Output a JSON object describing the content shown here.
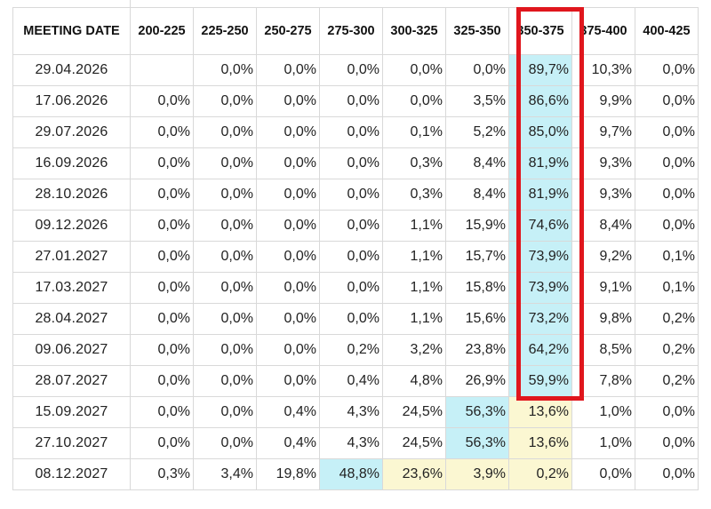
{
  "chart_data": {
    "type": "table",
    "columns": [
      "MEETING DATE",
      "200-225",
      "225-250",
      "250-275",
      "275-300",
      "300-325",
      "325-350",
      "350-375",
      "375-400",
      "400-425"
    ],
    "rows": [
      {
        "date": "29.04.2026",
        "values": [
          "",
          "0,0%",
          "0,0%",
          "0,0%",
          "0,0%",
          "0,0%",
          "89,7%",
          "10,3%",
          "0,0%"
        ]
      },
      {
        "date": "17.06.2026",
        "values": [
          "0,0%",
          "0,0%",
          "0,0%",
          "0,0%",
          "0,0%",
          "3,5%",
          "86,6%",
          "9,9%",
          "0,0%"
        ]
      },
      {
        "date": "29.07.2026",
        "values": [
          "0,0%",
          "0,0%",
          "0,0%",
          "0,0%",
          "0,1%",
          "5,2%",
          "85,0%",
          "9,7%",
          "0,0%"
        ]
      },
      {
        "date": "16.09.2026",
        "values": [
          "0,0%",
          "0,0%",
          "0,0%",
          "0,0%",
          "0,3%",
          "8,4%",
          "81,9%",
          "9,3%",
          "0,0%"
        ]
      },
      {
        "date": "28.10.2026",
        "values": [
          "0,0%",
          "0,0%",
          "0,0%",
          "0,0%",
          "0,3%",
          "8,4%",
          "81,9%",
          "9,3%",
          "0,0%"
        ]
      },
      {
        "date": "09.12.2026",
        "values": [
          "0,0%",
          "0,0%",
          "0,0%",
          "0,0%",
          "1,1%",
          "15,9%",
          "74,6%",
          "8,4%",
          "0,0%"
        ]
      },
      {
        "date": "27.01.2027",
        "values": [
          "0,0%",
          "0,0%",
          "0,0%",
          "0,0%",
          "1,1%",
          "15,7%",
          "73,9%",
          "9,2%",
          "0,1%"
        ]
      },
      {
        "date": "17.03.2027",
        "values": [
          "0,0%",
          "0,0%",
          "0,0%",
          "0,0%",
          "1,1%",
          "15,8%",
          "73,9%",
          "9,1%",
          "0,1%"
        ]
      },
      {
        "date": "28.04.2027",
        "values": [
          "0,0%",
          "0,0%",
          "0,0%",
          "0,0%",
          "1,1%",
          "15,6%",
          "73,2%",
          "9,8%",
          "0,2%"
        ]
      },
      {
        "date": "09.06.2027",
        "values": [
          "0,0%",
          "0,0%",
          "0,0%",
          "0,2%",
          "3,2%",
          "23,8%",
          "64,2%",
          "8,5%",
          "0,2%"
        ]
      },
      {
        "date": "28.07.2027",
        "values": [
          "0,0%",
          "0,0%",
          "0,0%",
          "0,4%",
          "4,8%",
          "26,9%",
          "59,9%",
          "7,8%",
          "0,2%"
        ]
      },
      {
        "date": "15.09.2027",
        "values": [
          "0,0%",
          "0,0%",
          "0,4%",
          "4,3%",
          "24,5%",
          "56,3%",
          "13,6%",
          "1,0%",
          "0,0%"
        ]
      },
      {
        "date": "27.10.2027",
        "values": [
          "0,0%",
          "0,0%",
          "0,4%",
          "4,3%",
          "24,5%",
          "56,3%",
          "13,6%",
          "1,0%",
          "0,0%"
        ]
      },
      {
        "date": "08.12.2027",
        "values": [
          "0,3%",
          "3,4%",
          "19,8%",
          "48,8%",
          "23,6%",
          "3,9%",
          "0,2%",
          "0,0%",
          "0,0%"
        ]
      }
    ],
    "highlights": [
      {
        "row": 0,
        "col": 6,
        "color": "#c6f0f7"
      },
      {
        "row": 1,
        "col": 6,
        "color": "#c6f0f7"
      },
      {
        "row": 2,
        "col": 6,
        "color": "#c6f0f7"
      },
      {
        "row": 3,
        "col": 6,
        "color": "#c6f0f7"
      },
      {
        "row": 4,
        "col": 6,
        "color": "#c6f0f7"
      },
      {
        "row": 5,
        "col": 6,
        "color": "#c6f0f7"
      },
      {
        "row": 6,
        "col": 6,
        "color": "#c6f0f7"
      },
      {
        "row": 7,
        "col": 6,
        "color": "#c6f0f7"
      },
      {
        "row": 8,
        "col": 6,
        "color": "#c6f0f7"
      },
      {
        "row": 9,
        "col": 6,
        "color": "#c6f0f7"
      },
      {
        "row": 10,
        "col": 6,
        "color": "#c6f0f7"
      },
      {
        "row": 11,
        "col": 5,
        "color": "#c6f0f7"
      },
      {
        "row": 11,
        "col": 6,
        "color": "#fbf7d2"
      },
      {
        "row": 12,
        "col": 5,
        "color": "#c6f0f7"
      },
      {
        "row": 12,
        "col": 6,
        "color": "#fbf7d2"
      },
      {
        "row": 13,
        "col": 3,
        "color": "#c6f0f7"
      },
      {
        "row": 13,
        "col": 4,
        "color": "#fbf7d2"
      },
      {
        "row": 13,
        "col": 5,
        "color": "#fbf7d2"
      },
      {
        "row": 13,
        "col": 6,
        "color": "#fbf7d2"
      }
    ],
    "annotation": {
      "type": "box",
      "column": "350-375",
      "rows": [
        0,
        10
      ],
      "color": "#e0161d"
    }
  }
}
